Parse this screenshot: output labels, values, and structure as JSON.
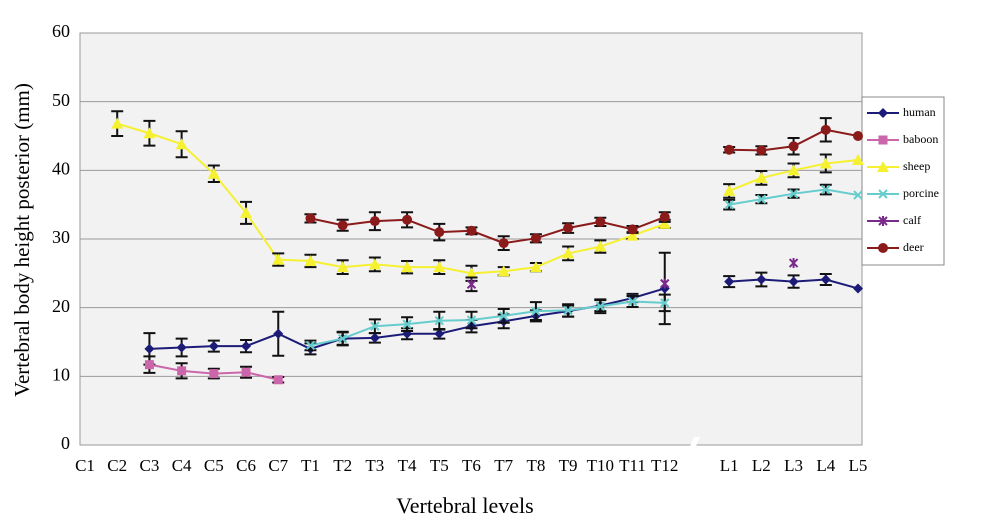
{
  "chart_data": {
    "type": "line",
    "xlabel": "Vertebral levels",
    "ylabel": "Vertebral body height posterior (mm)",
    "categories": [
      "C1",
      "C2",
      "C3",
      "C4",
      "C5",
      "C6",
      "C7",
      "T1",
      "T2",
      "T3",
      "T4",
      "T5",
      "T6",
      "T7",
      "T8",
      "T9",
      "T10",
      "T11",
      "T12",
      null,
      "L1",
      "L2",
      "L3",
      "L4",
      "L5"
    ],
    "ylim": [
      0,
      60
    ],
    "yticks": [
      0,
      10,
      20,
      30,
      40,
      50,
      60
    ],
    "grid": true,
    "legend": "right",
    "series": [
      {
        "name": "human",
        "color": "#1c1c78",
        "marker": "diamond",
        "values": [
          null,
          null,
          14,
          14.2,
          14.4,
          14.4,
          16.2,
          14,
          15.5,
          15.6,
          16.2,
          16.2,
          17.3,
          18,
          18.8,
          19.5,
          20.3,
          21.4,
          22.8,
          null,
          23.8,
          24.1,
          23.8,
          24.1,
          22.8
        ],
        "errors": [
          null,
          null,
          2.3,
          1.3,
          0.8,
          0.9,
          3.2,
          0.8,
          0.9,
          0.7,
          0.8,
          0.7,
          0.9,
          1.0,
          0.8,
          0.8,
          0.8,
          0.6,
          5.2,
          null,
          0.8,
          1.0,
          0.9,
          0.8,
          null
        ]
      },
      {
        "name": "baboon",
        "color": "#cc66aa",
        "marker": "square",
        "values": [
          null,
          null,
          11.7,
          10.8,
          10.4,
          10.6,
          9.5,
          null,
          null,
          null,
          null,
          null,
          null,
          null,
          null,
          null,
          null,
          null,
          null,
          null,
          null,
          null,
          null,
          null,
          null
        ],
        "errors": [
          null,
          null,
          1.2,
          1.1,
          0.7,
          0.8,
          0.4,
          null,
          null,
          null,
          null,
          null,
          null,
          null,
          null,
          null,
          null,
          null,
          null,
          null,
          null,
          null,
          null,
          null,
          null
        ]
      },
      {
        "name": "sheep",
        "color": "#f5f030",
        "marker": "triangle",
        "values": [
          null,
          46.8,
          45.4,
          43.8,
          39.5,
          33.8,
          27,
          26.8,
          25.9,
          26.3,
          25.9,
          25.9,
          25,
          25.3,
          25.9,
          27.9,
          28.9,
          30.5,
          32.2,
          null,
          37,
          38.9,
          40,
          41,
          41.5
        ],
        "errors": [
          null,
          1.8,
          1.8,
          1.9,
          1.2,
          1.6,
          0.9,
          0.9,
          1.0,
          1.0,
          0.9,
          1.0,
          1.1,
          0.6,
          0.6,
          1.0,
          0.9,
          0.5,
          0.6,
          null,
          1.0,
          1.0,
          1.0,
          1.3,
          null
        ]
      },
      {
        "name": "porcine",
        "color": "#66cccc",
        "marker": "x",
        "values": [
          null,
          null,
          null,
          null,
          null,
          null,
          null,
          14.5,
          15.5,
          17.3,
          17.6,
          18.1,
          18.2,
          18.8,
          19.5,
          19.6,
          20.2,
          20.9,
          20.7,
          null,
          35,
          35.8,
          36.6,
          37.2,
          36.4
        ],
        "errors": [
          null,
          null,
          null,
          null,
          null,
          null,
          null,
          0.7,
          1.0,
          1.0,
          1.0,
          1.3,
          1.2,
          1.0,
          1.3,
          0.9,
          1.0,
          0.8,
          1.2,
          null,
          0.7,
          0.6,
          0.6,
          0.7,
          null
        ]
      },
      {
        "name": "calf",
        "color": "#7a2a8a",
        "marker": "star",
        "values": [
          null,
          null,
          null,
          null,
          null,
          null,
          null,
          null,
          null,
          null,
          null,
          null,
          23.4,
          null,
          null,
          null,
          null,
          null,
          23.5,
          null,
          null,
          null,
          26.5,
          null,
          null
        ],
        "errors": [
          null,
          null,
          null,
          null,
          null,
          null,
          null,
          null,
          null,
          null,
          null,
          null,
          1.0,
          null,
          null,
          null,
          null,
          null,
          null,
          null,
          null,
          null,
          null,
          null,
          null
        ]
      },
      {
        "name": "deer",
        "color": "#8b1a1a",
        "marker": "circle",
        "values": [
          null,
          null,
          null,
          null,
          null,
          null,
          null,
          33,
          32,
          32.6,
          32.8,
          31,
          31.2,
          29.4,
          30.1,
          31.6,
          32.5,
          31.4,
          33.2,
          null,
          43,
          42.9,
          43.5,
          45.9,
          45
        ],
        "errors": [
          null,
          null,
          null,
          null,
          null,
          null,
          null,
          0.6,
          0.8,
          1.3,
          1.1,
          1.2,
          0.5,
          1.0,
          0.6,
          0.7,
          0.6,
          0.5,
          0.7,
          null,
          0.4,
          0.6,
          1.2,
          1.7,
          null
        ]
      }
    ]
  }
}
